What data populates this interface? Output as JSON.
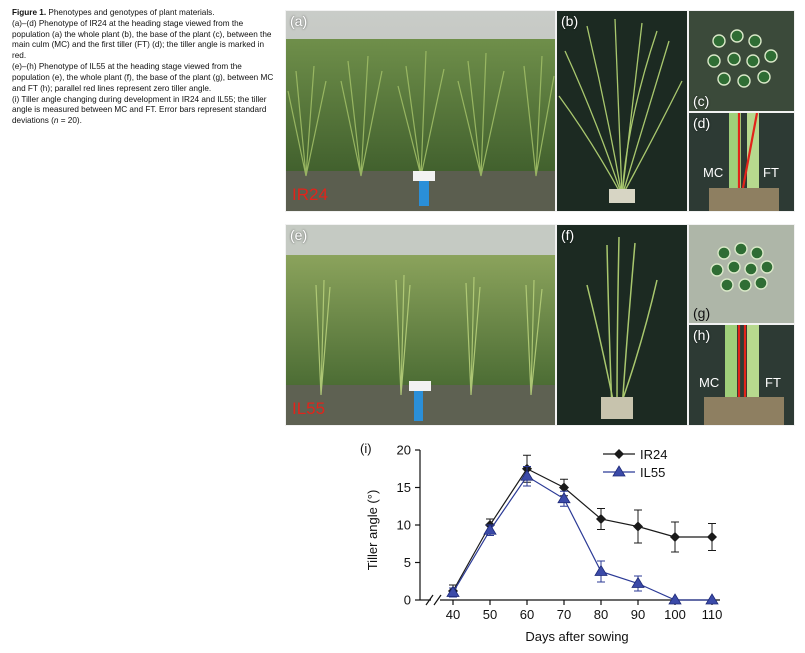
{
  "caption": {
    "title": "Figure 1.",
    "title_text": " Phenotypes and genotypes of plant materials.",
    "line_ad": "(a)–(d) Phenotype of IR24 at the heading stage viewed from the population (a) the whole plant (b), the base of the plant (c), between the main culm (MC) and the first tiller (FT) (d); the tiller angle is marked in red.",
    "line_eh": "(e)–(h) Phenotype of IL55 at the heading stage viewed from the population (e), the whole plant (f), the base of the plant (g), between MC and FT (h); parallel red lines represent zero tiller angle.",
    "line_i_a": "(i) Tiller angle changing during development in IR24 and IL55; the tiller angle is measured between MC and FT. Error bars represent standard deviations (",
    "line_i_n": "n",
    "line_i_b": " = 20)."
  },
  "panels": {
    "a": "(a)",
    "b": "(b)",
    "c": "(c)",
    "d": "(d)",
    "e": "(e)",
    "f": "(f)",
    "g": "(g)",
    "h": "(h)"
  },
  "varieties": {
    "top": "IR24",
    "bottom": "IL55"
  },
  "culm_labels": {
    "mc": "MC",
    "ft": "FT"
  },
  "colors": {
    "red_label": "#e2231a",
    "ir24": "#1a1a1a",
    "il55": "#2b3a96"
  },
  "chart_data": {
    "type": "line",
    "panel_label": "(i)",
    "xlabel": "Days after sowing",
    "ylabel": "Tiller angle (°)",
    "x": [
      40,
      50,
      60,
      70,
      80,
      90,
      100,
      110
    ],
    "xticks": [
      "40",
      "50",
      "60",
      "70",
      "80",
      "90",
      "100",
      "110"
    ],
    "yticks": [
      "0",
      "5",
      "10",
      "15",
      "20"
    ],
    "ylim": [
      0,
      20
    ],
    "axis_break": true,
    "legend_position": "top-right",
    "series": [
      {
        "name": "IR24",
        "marker": "diamond",
        "values": [
          1.2,
          10.0,
          17.5,
          15.0,
          10.8,
          9.8,
          8.4,
          8.4
        ],
        "errors": [
          0.8,
          0.8,
          1.8,
          1.1,
          1.4,
          2.2,
          2.0,
          1.8
        ]
      },
      {
        "name": "IL55",
        "marker": "triangle",
        "values": [
          1.0,
          9.3,
          16.5,
          13.5,
          3.8,
          2.2,
          0.0,
          0.0
        ],
        "errors": [
          0.6,
          0.7,
          1.3,
          1.0,
          1.4,
          1.0,
          0.0,
          0.0
        ]
      }
    ]
  }
}
